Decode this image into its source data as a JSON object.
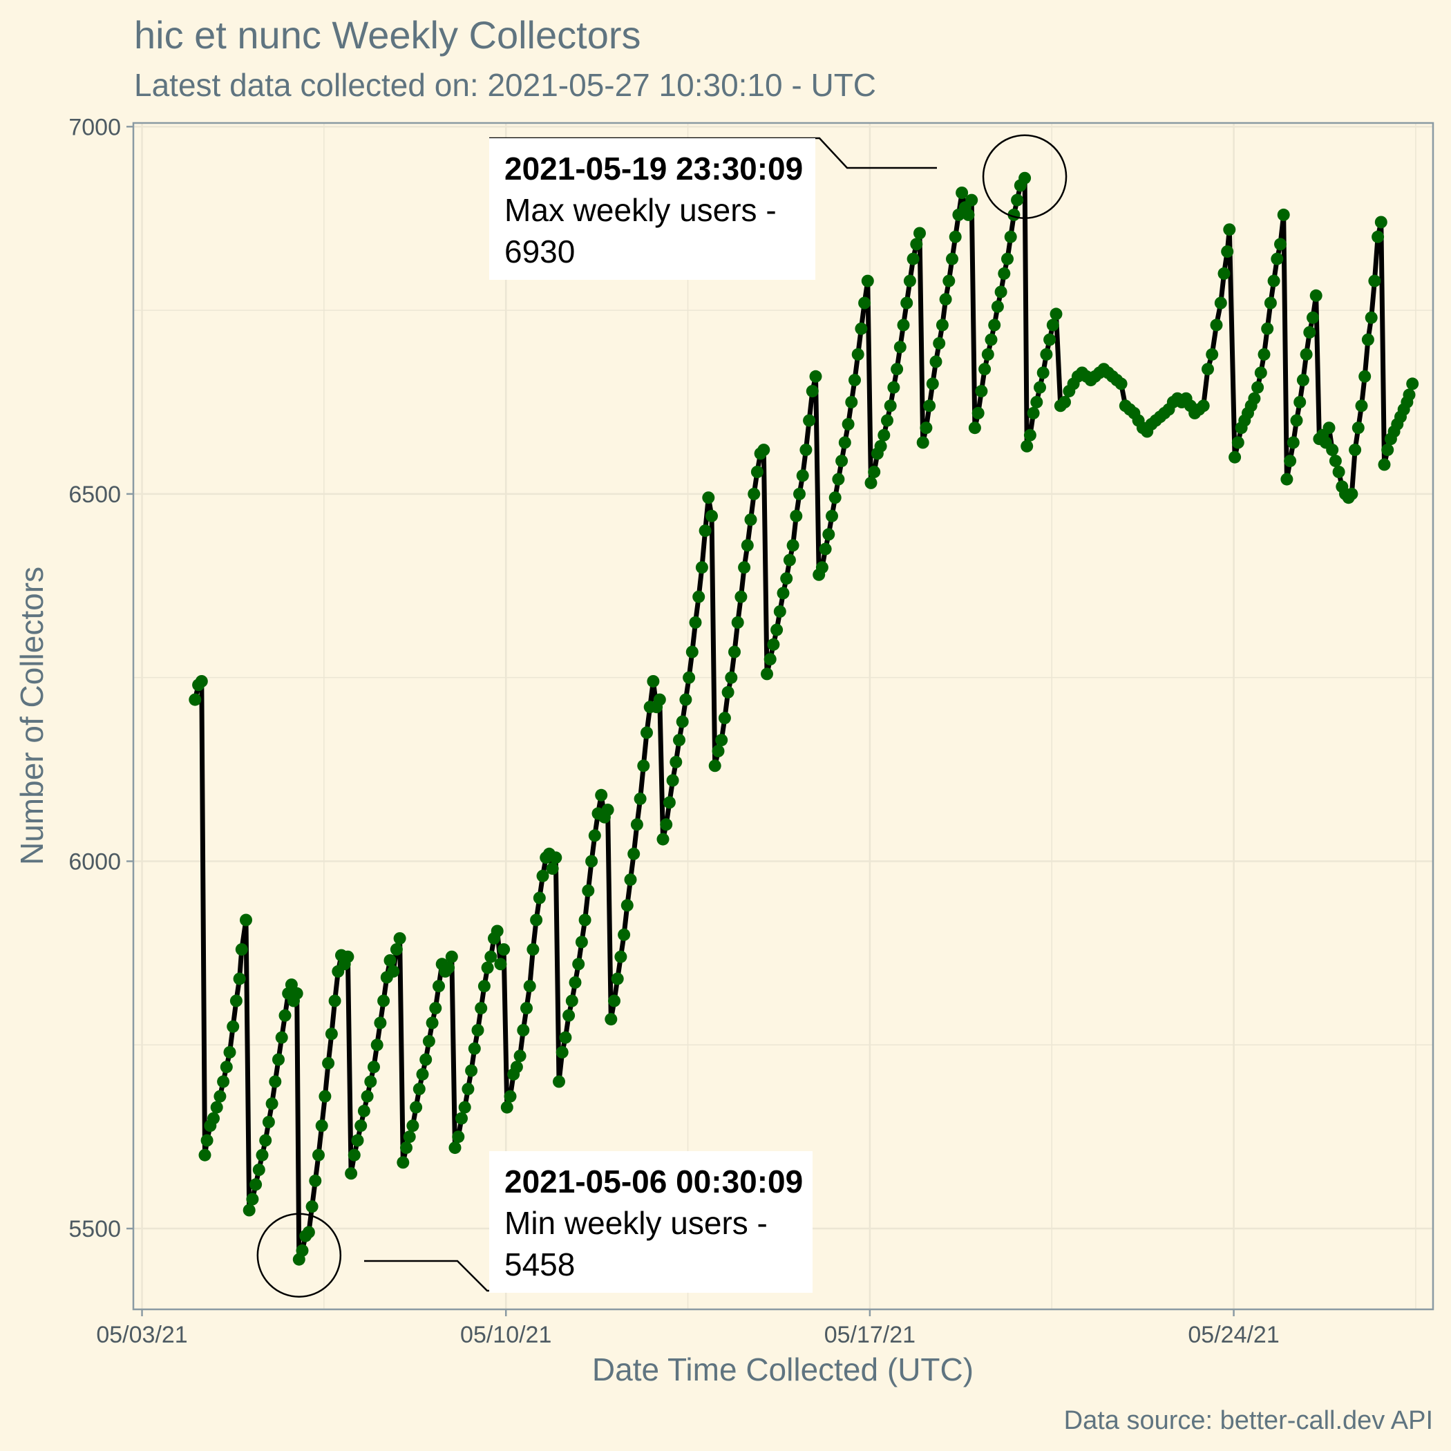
{
  "title": "hic et nunc Weekly Collectors",
  "subtitle": "Latest data collected on: 2021-05-27 10:30:10  - UTC",
  "caption": "Data source: better-call.dev API",
  "colors": {
    "background": "#fdf6e3",
    "line": "#000000",
    "points": "#006400",
    "grid": "#ece6d4",
    "axis": "#8a9aa3",
    "text": "#5f7480"
  },
  "chart_data": {
    "type": "line",
    "title": "hic et nunc Weekly Collectors",
    "subtitle": "Latest data collected on: 2021-05-27 10:30:10  - UTC",
    "xlabel": "Date Time Collected (UTC)",
    "ylabel": "Number of Collectors",
    "x_unit": "date (2021, UTC)",
    "xlim": [
      "2021-05-02 20:00",
      "2021-05-27 20:00"
    ],
    "ylim": [
      5390,
      7005
    ],
    "x_ticks": [
      "05/03/21",
      "05/10/21",
      "05/17/21",
      "05/24/21"
    ],
    "y_ticks": [
      5500,
      6000,
      6500,
      7000
    ],
    "grid": true,
    "legend": "none",
    "series": [
      {
        "x": [
          "2021-05-04 00:30",
          "2021-05-04 02:00",
          "2021-05-04 03:30",
          "2021-05-04 05:00",
          "2021-05-04 06:00",
          "2021-05-04 07:30",
          "2021-05-04 09:00",
          "2021-05-04 10:30",
          "2021-05-04 12:00",
          "2021-05-04 13:30",
          "2021-05-04 15:00",
          "2021-05-04 16:30",
          "2021-05-04 18:00",
          "2021-05-04 19:30",
          "2021-05-04 21:00",
          "2021-05-04 22:00",
          "2021-05-05 00:00",
          "2021-05-05 01:30",
          "2021-05-05 03:00",
          "2021-05-05 04:30",
          "2021-05-05 06:00",
          "2021-05-05 07:30",
          "2021-05-05 09:00",
          "2021-05-05 10:30",
          "2021-05-05 12:00",
          "2021-05-05 13:30",
          "2021-05-05 15:00",
          "2021-05-05 16:30",
          "2021-05-05 18:00",
          "2021-05-05 19:30",
          "2021-05-05 21:00",
          "2021-05-05 22:00",
          "2021-05-05 23:30",
          "2021-05-06 00:30",
          "2021-05-06 02:00",
          "2021-05-06 03:30",
          "2021-05-06 05:00",
          "2021-05-06 06:30",
          "2021-05-06 08:00",
          "2021-05-06 09:30",
          "2021-05-06 11:00",
          "2021-05-06 12:30",
          "2021-05-06 14:00",
          "2021-05-06 15:30",
          "2021-05-06 17:00",
          "2021-05-06 18:30",
          "2021-05-06 20:00",
          "2021-05-06 21:30",
          "2021-05-06 23:00",
          "2021-05-07 00:30",
          "2021-05-07 02:00",
          "2021-05-07 03:30",
          "2021-05-07 05:00",
          "2021-05-07 06:30",
          "2021-05-07 08:00",
          "2021-05-07 09:30",
          "2021-05-07 11:00",
          "2021-05-07 12:30",
          "2021-05-07 14:00",
          "2021-05-07 15:30",
          "2021-05-07 17:00",
          "2021-05-07 18:30",
          "2021-05-07 20:00",
          "2021-05-07 21:30",
          "2021-05-07 23:00",
          "2021-05-08 00:30",
          "2021-05-08 02:00",
          "2021-05-08 03:30",
          "2021-05-08 05:00",
          "2021-05-08 06:30",
          "2021-05-08 08:00",
          "2021-05-08 09:30",
          "2021-05-08 11:00",
          "2021-05-08 12:30",
          "2021-05-08 14:00",
          "2021-05-08 15:30",
          "2021-05-08 17:00",
          "2021-05-08 18:30",
          "2021-05-08 20:00",
          "2021-05-08 21:30",
          "2021-05-08 23:00",
          "2021-05-09 00:30",
          "2021-05-09 02:00",
          "2021-05-09 03:30",
          "2021-05-09 05:00",
          "2021-05-09 06:30",
          "2021-05-09 08:00",
          "2021-05-09 09:30",
          "2021-05-09 11:00",
          "2021-05-09 12:30",
          "2021-05-09 14:00",
          "2021-05-09 15:30",
          "2021-05-09 17:00",
          "2021-05-09 18:30",
          "2021-05-09 20:00",
          "2021-05-09 21:30",
          "2021-05-09 23:00",
          "2021-05-10 00:30",
          "2021-05-10 02:00",
          "2021-05-10 03:30",
          "2021-05-10 05:00",
          "2021-05-10 06:30",
          "2021-05-10 08:00",
          "2021-05-10 09:30",
          "2021-05-10 11:00",
          "2021-05-10 12:30",
          "2021-05-10 14:00",
          "2021-05-10 15:30",
          "2021-05-10 17:00",
          "2021-05-10 18:30",
          "2021-05-10 20:00",
          "2021-05-10 21:30",
          "2021-05-10 23:00",
          "2021-05-11 00:30",
          "2021-05-11 02:00",
          "2021-05-11 03:30",
          "2021-05-11 05:00",
          "2021-05-11 06:30",
          "2021-05-11 08:00",
          "2021-05-11 09:30",
          "2021-05-11 11:00",
          "2021-05-11 12:30",
          "2021-05-11 14:00",
          "2021-05-11 15:30",
          "2021-05-11 17:00",
          "2021-05-11 18:30",
          "2021-05-11 20:00",
          "2021-05-11 21:30",
          "2021-05-11 23:00",
          "2021-05-12 00:30",
          "2021-05-12 02:00",
          "2021-05-12 03:30",
          "2021-05-12 05:00",
          "2021-05-12 06:30",
          "2021-05-12 08:00",
          "2021-05-12 09:30",
          "2021-05-12 11:00",
          "2021-05-12 12:30",
          "2021-05-12 14:00",
          "2021-05-12 15:30",
          "2021-05-12 17:00",
          "2021-05-12 18:30",
          "2021-05-12 20:00",
          "2021-05-12 21:30",
          "2021-05-12 23:00",
          "2021-05-13 00:30",
          "2021-05-13 02:00",
          "2021-05-13 03:30",
          "2021-05-13 05:00",
          "2021-05-13 06:30",
          "2021-05-13 08:00",
          "2021-05-13 09:30",
          "2021-05-13 11:00",
          "2021-05-13 12:30",
          "2021-05-13 14:00",
          "2021-05-13 15:30",
          "2021-05-13 17:00",
          "2021-05-13 18:30",
          "2021-05-13 20:00",
          "2021-05-13 21:30",
          "2021-05-13 23:00",
          "2021-05-14 00:30",
          "2021-05-14 02:00",
          "2021-05-14 03:30",
          "2021-05-14 05:00",
          "2021-05-14 06:30",
          "2021-05-14 08:00",
          "2021-05-14 09:30",
          "2021-05-14 11:00",
          "2021-05-14 12:30",
          "2021-05-14 14:00",
          "2021-05-14 15:30",
          "2021-05-14 17:00",
          "2021-05-14 18:30",
          "2021-05-14 20:00",
          "2021-05-14 21:30",
          "2021-05-14 23:00",
          "2021-05-15 00:30",
          "2021-05-15 02:00",
          "2021-05-15 03:30",
          "2021-05-15 05:00",
          "2021-05-15 06:30",
          "2021-05-15 08:00",
          "2021-05-15 09:30",
          "2021-05-15 11:00",
          "2021-05-15 12:30",
          "2021-05-15 14:00",
          "2021-05-15 15:30",
          "2021-05-15 17:00",
          "2021-05-15 18:30",
          "2021-05-15 20:00",
          "2021-05-15 21:30",
          "2021-05-15 23:00",
          "2021-05-16 00:30",
          "2021-05-16 02:00",
          "2021-05-16 03:30",
          "2021-05-16 05:00",
          "2021-05-16 06:30",
          "2021-05-16 08:00",
          "2021-05-16 09:30",
          "2021-05-16 11:00",
          "2021-05-16 12:30",
          "2021-05-16 14:00",
          "2021-05-16 15:30",
          "2021-05-16 17:00",
          "2021-05-16 18:30",
          "2021-05-16 20:00",
          "2021-05-16 21:30",
          "2021-05-16 23:00",
          "2021-05-17 00:30",
          "2021-05-17 02:00",
          "2021-05-17 03:30",
          "2021-05-17 05:00",
          "2021-05-17 06:30",
          "2021-05-17 08:00",
          "2021-05-17 09:30",
          "2021-05-17 11:00",
          "2021-05-17 12:30",
          "2021-05-17 14:00",
          "2021-05-17 15:30",
          "2021-05-17 17:00",
          "2021-05-17 18:30",
          "2021-05-17 20:00",
          "2021-05-17 21:30",
          "2021-05-17 23:00",
          "2021-05-18 00:30",
          "2021-05-18 02:00",
          "2021-05-18 03:30",
          "2021-05-18 05:00",
          "2021-05-18 06:30",
          "2021-05-18 08:00",
          "2021-05-18 09:30",
          "2021-05-18 11:00",
          "2021-05-18 12:30",
          "2021-05-18 14:00",
          "2021-05-18 15:30",
          "2021-05-18 17:00",
          "2021-05-18 18:30",
          "2021-05-18 20:00",
          "2021-05-18 21:30",
          "2021-05-18 23:00",
          "2021-05-19 00:30",
          "2021-05-19 02:00",
          "2021-05-19 03:30",
          "2021-05-19 05:00",
          "2021-05-19 06:30",
          "2021-05-19 08:00",
          "2021-05-19 09:30",
          "2021-05-19 11:00",
          "2021-05-19 12:30",
          "2021-05-19 14:00",
          "2021-05-19 15:30",
          "2021-05-19 17:00",
          "2021-05-19 18:30",
          "2021-05-19 20:00",
          "2021-05-19 21:30",
          "2021-05-19 23:30",
          "2021-05-20 00:30",
          "2021-05-20 02:00",
          "2021-05-20 03:30",
          "2021-05-20 05:00",
          "2021-05-20 06:30",
          "2021-05-20 08:00",
          "2021-05-20 09:30",
          "2021-05-20 11:00",
          "2021-05-20 12:30",
          "2021-05-20 14:00",
          "2021-05-20 16:00",
          "2021-05-20 18:00",
          "2021-05-20 20:00",
          "2021-05-20 22:00",
          "2021-05-21 00:00",
          "2021-05-21 02:00",
          "2021-05-21 04:00",
          "2021-05-21 06:00",
          "2021-05-21 08:00",
          "2021-05-21 10:00",
          "2021-05-21 12:00",
          "2021-05-21 14:00",
          "2021-05-21 16:00",
          "2021-05-21 18:00",
          "2021-05-21 20:00",
          "2021-05-21 22:00",
          "2021-05-22 00:00",
          "2021-05-22 02:00",
          "2021-05-22 04:00",
          "2021-05-22 06:00",
          "2021-05-22 08:00",
          "2021-05-22 10:00",
          "2021-05-22 12:00",
          "2021-05-22 14:00",
          "2021-05-22 16:00",
          "2021-05-22 18:00",
          "2021-05-22 20:00",
          "2021-05-22 22:00",
          "2021-05-23 00:00",
          "2021-05-23 02:00",
          "2021-05-23 04:00",
          "2021-05-23 06:00",
          "2021-05-23 08:00",
          "2021-05-23 10:00",
          "2021-05-23 12:00",
          "2021-05-23 14:00",
          "2021-05-23 16:00",
          "2021-05-23 18:00",
          "2021-05-23 19:30",
          "2021-05-23 21:00",
          "2021-05-23 22:00",
          "2021-05-24 00:30",
          "2021-05-24 02:00",
          "2021-05-24 03:30",
          "2021-05-24 05:00",
          "2021-05-24 06:30",
          "2021-05-24 08:00",
          "2021-05-24 09:30",
          "2021-05-24 11:00",
          "2021-05-24 12:30",
          "2021-05-24 14:00",
          "2021-05-24 15:30",
          "2021-05-24 17:00",
          "2021-05-24 18:30",
          "2021-05-24 20:00",
          "2021-05-24 21:30",
          "2021-05-24 23:00",
          "2021-05-25 00:30",
          "2021-05-25 02:00",
          "2021-05-25 03:30",
          "2021-05-25 05:00",
          "2021-05-25 06:30",
          "2021-05-25 08:00",
          "2021-05-25 09:30",
          "2021-05-25 11:00",
          "2021-05-25 12:30",
          "2021-05-25 14:00",
          "2021-05-25 15:30",
          "2021-05-25 17:00",
          "2021-05-25 18:30",
          "2021-05-25 20:00",
          "2021-05-25 21:30",
          "2021-05-25 23:00",
          "2021-05-26 00:30",
          "2021-05-26 02:00",
          "2021-05-26 03:30",
          "2021-05-26 05:00",
          "2021-05-26 06:30",
          "2021-05-26 08:00",
          "2021-05-26 09:30",
          "2021-05-26 11:00",
          "2021-05-26 12:30",
          "2021-05-26 14:00",
          "2021-05-26 15:30",
          "2021-05-26 17:00",
          "2021-05-26 18:30",
          "2021-05-26 20:00",
          "2021-05-26 21:30",
          "2021-05-26 23:00",
          "2021-05-27 00:30",
          "2021-05-27 02:00",
          "2021-05-27 03:30",
          "2021-05-27 05:00",
          "2021-05-27 06:30",
          "2021-05-27 08:00",
          "2021-05-27 09:00",
          "2021-05-27 10:30"
        ],
        "y": [
          6220,
          6240,
          6245,
          5600,
          5620,
          5640,
          5650,
          5665,
          5680,
          5700,
          5720,
          5740,
          5775,
          5810,
          5840,
          5880,
          5920,
          5525,
          5540,
          5560,
          5580,
          5600,
          5620,
          5645,
          5670,
          5700,
          5730,
          5760,
          5790,
          5820,
          5832,
          5810,
          5820,
          5458,
          5470,
          5490,
          5495,
          5530,
          5565,
          5600,
          5640,
          5680,
          5725,
          5765,
          5810,
          5850,
          5872,
          5860,
          5870,
          5575,
          5600,
          5620,
          5640,
          5660,
          5680,
          5700,
          5720,
          5750,
          5780,
          5810,
          5842,
          5865,
          5850,
          5880,
          5895,
          5590,
          5610,
          5625,
          5640,
          5665,
          5690,
          5710,
          5730,
          5755,
          5780,
          5800,
          5830,
          5860,
          5850,
          5855,
          5870,
          5610,
          5625,
          5650,
          5665,
          5690,
          5715,
          5745,
          5770,
          5800,
          5830,
          5855,
          5870,
          5895,
          5905,
          5860,
          5880,
          5665,
          5680,
          5710,
          5720,
          5735,
          5770,
          5800,
          5830,
          5880,
          5920,
          5950,
          5980,
          6005,
          6010,
          5990,
          6005,
          5700,
          5740,
          5760,
          5790,
          5810,
          5835,
          5860,
          5890,
          5920,
          5960,
          6000,
          6035,
          6065,
          6090,
          6060,
          6070,
          5785,
          5810,
          5840,
          5870,
          5900,
          5940,
          5975,
          6010,
          6050,
          6085,
          6130,
          6175,
          6210,
          6245,
          6210,
          6220,
          6030,
          6050,
          6080,
          6110,
          6135,
          6165,
          6190,
          6220,
          6250,
          6285,
          6325,
          6360,
          6400,
          6450,
          6495,
          6470,
          6130,
          6150,
          6165,
          6195,
          6230,
          6250,
          6285,
          6325,
          6360,
          6400,
          6430,
          6465,
          6500,
          6530,
          6555,
          6560,
          6255,
          6275,
          6295,
          6315,
          6340,
          6365,
          6385,
          6410,
          6430,
          6470,
          6500,
          6525,
          6560,
          6600,
          6640,
          6660,
          6390,
          6400,
          6425,
          6445,
          6470,
          6495,
          6520,
          6545,
          6570,
          6595,
          6625,
          6655,
          6690,
          6725,
          6760,
          6790,
          6515,
          6530,
          6555,
          6565,
          6580,
          6600,
          6620,
          6645,
          6670,
          6700,
          6730,
          6760,
          6790,
          6820,
          6840,
          6855,
          6570,
          6590,
          6620,
          6650,
          6680,
          6705,
          6730,
          6765,
          6790,
          6820,
          6850,
          6880,
          6910,
          6890,
          6880,
          6900,
          6590,
          6610,
          6640,
          6670,
          6690,
          6710,
          6730,
          6755,
          6775,
          6800,
          6820,
          6850,
          6880,
          6900,
          6920,
          6930,
          6565,
          6580,
          6610,
          6625,
          6645,
          6665,
          6690,
          6710,
          6730,
          6745,
          6620,
          6625,
          6640,
          6650,
          6660,
          6665,
          6660,
          6655,
          6660,
          6665,
          6670,
          6665,
          6660,
          6655,
          6650,
          6620,
          6615,
          6610,
          6600,
          6590,
          6585,
          6595,
          6600,
          6605,
          6610,
          6615,
          6625,
          6630,
          6625,
          6630,
          6620,
          6610,
          6615,
          6620,
          6670,
          6690,
          6730,
          6760,
          6800,
          6830,
          6860,
          6550,
          6570,
          6590,
          6600,
          6610,
          6620,
          6630,
          6645,
          6665,
          6690,
          6725,
          6760,
          6790,
          6820,
          6840,
          6880,
          6520,
          6545,
          6570,
          6600,
          6625,
          6655,
          6690,
          6720,
          6740,
          6770,
          6575,
          6580,
          6570,
          6590,
          6560,
          6545,
          6530,
          6510,
          6500,
          6495,
          6500,
          6560,
          6590,
          6620,
          6660,
          6710,
          6740,
          6790,
          6850,
          6870,
          6540,
          6560,
          6575,
          6585,
          6595,
          6605,
          6615,
          6625,
          6635,
          6650
        ]
      }
    ],
    "annotations": [
      {
        "kind": "max",
        "x": "2021-05-19 23:30",
        "y": 6930,
        "date_text": "2021-05-19 23:30:09",
        "line1": "Max weekly users -",
        "line2": "6930"
      },
      {
        "kind": "min",
        "x": "2021-05-06 00:30",
        "y": 5458,
        "date_text": "2021-05-06 00:30:09",
        "line1": "Min weekly users -",
        "line2": "5458"
      }
    ]
  }
}
